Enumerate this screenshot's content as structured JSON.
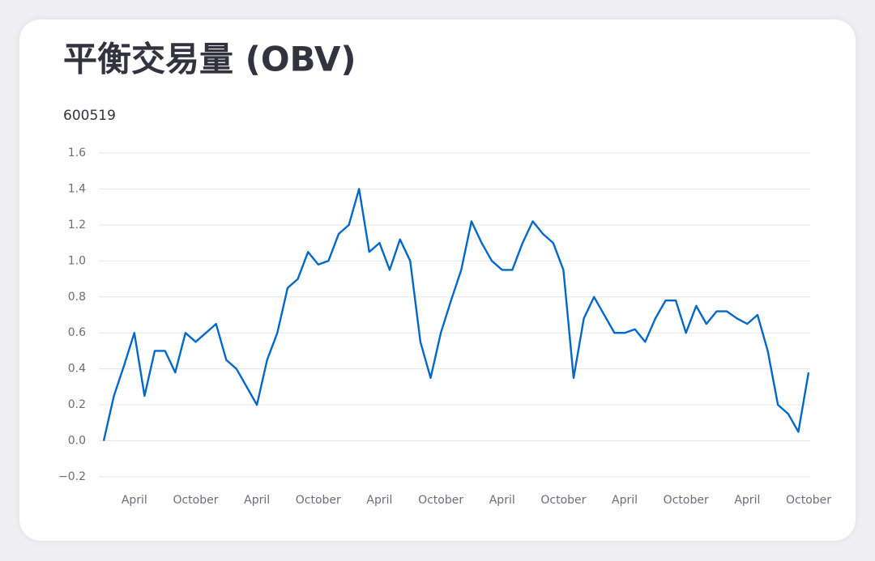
{
  "chart_data": {
    "type": "line",
    "title": "平衡交易量 (OBV)",
    "subtitle": "600519",
    "categories": [
      null,
      null,
      null,
      "April",
      null,
      null,
      null,
      null,
      null,
      "October",
      null,
      null,
      null,
      null,
      null,
      "April",
      null,
      null,
      null,
      null,
      null,
      "October",
      null,
      null,
      null,
      null,
      null,
      "April",
      null,
      null,
      null,
      null,
      null,
      "October",
      null,
      null,
      null,
      null,
      null,
      "April",
      null,
      null,
      null,
      null,
      null,
      "October",
      null,
      null,
      null,
      null,
      null,
      "April",
      null,
      null,
      null,
      null,
      null,
      "October",
      null,
      null,
      null,
      null,
      null,
      "April",
      null,
      null,
      null,
      null,
      null,
      "October"
    ],
    "series": [
      {
        "name": "600519",
        "color": "#0068c9",
        "values": [
          0.0,
          0.25,
          0.42,
          0.6,
          0.25,
          0.5,
          0.5,
          0.38,
          0.6,
          0.55,
          0.6,
          0.65,
          0.45,
          0.4,
          0.3,
          0.2,
          0.45,
          0.6,
          0.85,
          0.9,
          1.05,
          0.98,
          1.0,
          1.15,
          1.2,
          1.4,
          1.05,
          1.1,
          0.95,
          1.12,
          1.0,
          0.55,
          0.35,
          0.6,
          0.78,
          0.95,
          1.22,
          1.1,
          1.0,
          0.95,
          0.95,
          1.1,
          1.22,
          1.15,
          1.1,
          0.95,
          0.35,
          0.68,
          0.8,
          0.7,
          0.6,
          0.6,
          0.62,
          0.55,
          0.68,
          0.78,
          0.78,
          0.6,
          0.75,
          0.65,
          0.72,
          0.72,
          0.68,
          0.65,
          0.7,
          0.5,
          0.2,
          0.15,
          0.05,
          0.38
        ]
      }
    ],
    "ylim": [
      -0.2,
      1.6
    ],
    "yticks": [
      {
        "value": -0.2,
        "label": "−0.2"
      },
      {
        "value": 0,
        "label": "0.0"
      },
      0.2,
      0.4,
      0.6,
      0.8,
      {
        "value": 1,
        "label": "1.0"
      },
      1.2,
      1.4,
      1.6
    ],
    "grid": true
  }
}
